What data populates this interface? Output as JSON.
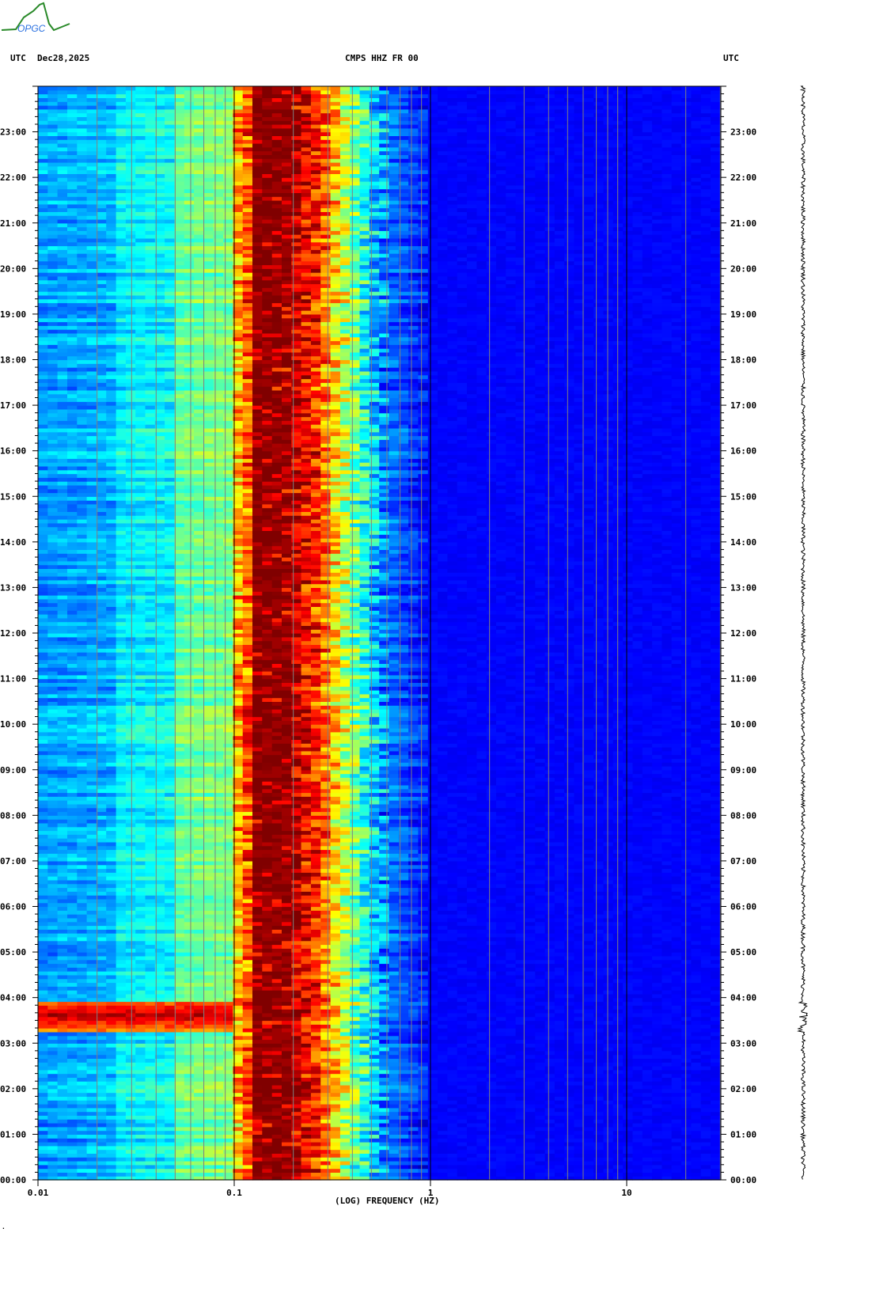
{
  "header": {
    "left_tz": "UTC",
    "date": "Dec28,2025",
    "station": "CMPS HHZ FR 00",
    "right_tz": "UTC"
  },
  "logo": {
    "text": "OPGC"
  },
  "footer_mark": "·",
  "colors": {
    "grid": "#808080",
    "background": "#ffffff"
  },
  "chart_data": {
    "type": "heatmap",
    "xlabel": "(LOG) FREQUENCY (HZ)",
    "x_scale": "log",
    "xlim": [
      0.01,
      30
    ],
    "x_ticks": [
      "0.01",
      "0.1",
      "1",
      "10"
    ],
    "y_range_hours": [
      0,
      24
    ],
    "y_ticks": [
      "00:00",
      "01:00",
      "02:00",
      "03:00",
      "04:00",
      "05:00",
      "06:00",
      "07:00",
      "08:00",
      "09:00",
      "10:00",
      "11:00",
      "12:00",
      "13:00",
      "14:00",
      "15:00",
      "16:00",
      "17:00",
      "18:00",
      "19:00",
      "20:00",
      "21:00",
      "22:00",
      "23:00"
    ],
    "colormap": "jet",
    "grid": "vertical lines at 1-9 x each decade",
    "spectral_profile": [
      {
        "f": 0.01,
        "level": 0.28
      },
      {
        "f": 0.024,
        "level": 0.3
      },
      {
        "f": 0.025,
        "level": 0.36
      },
      {
        "f": 0.05,
        "level": 0.38
      },
      {
        "f": 0.051,
        "level": 0.47
      },
      {
        "f": 0.095,
        "level": 0.5
      },
      {
        "f": 0.1,
        "level": 0.68
      },
      {
        "f": 0.12,
        "level": 0.8
      },
      {
        "f": 0.13,
        "level": 0.98
      },
      {
        "f": 0.2,
        "level": 0.95
      },
      {
        "f": 0.28,
        "level": 0.8
      },
      {
        "f": 0.35,
        "level": 0.6
      },
      {
        "f": 0.45,
        "level": 0.42
      },
      {
        "f": 0.6,
        "level": 0.25
      },
      {
        "f": 0.9,
        "level": 0.15
      },
      {
        "f": 2,
        "level": 0.12
      },
      {
        "f": 30,
        "level": 0.12
      }
    ],
    "events": [
      {
        "start": "03:15",
        "end": "03:55",
        "f_max": 0.1,
        "level": 0.95
      }
    ]
  }
}
